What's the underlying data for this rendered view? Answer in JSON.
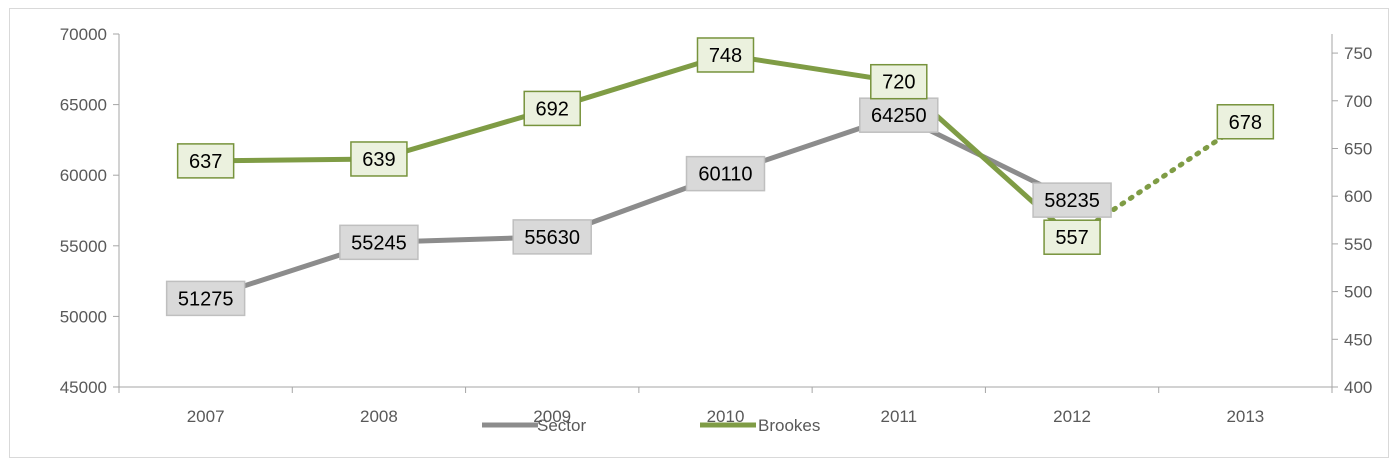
{
  "chart_data": {
    "type": "line",
    "categories": [
      "2007",
      "2008",
      "2009",
      "2010",
      "2011",
      "2012",
      "2013"
    ],
    "series": [
      {
        "name": "Sector",
        "axis": "left",
        "color": "#8c8c8c",
        "label_fill": "#d9d9d9",
        "label_border": "#bfbfbf",
        "values": [
          51275,
          55245,
          55630,
          60110,
          64250,
          58235,
          null
        ],
        "labels": [
          "51275",
          "55245",
          "55630",
          "60110",
          "64250",
          "58235",
          ""
        ]
      },
      {
        "name": "Brookes",
        "axis": "right",
        "color": "#7f9c45",
        "label_fill": "#ebf1de",
        "label_border": "#77933c",
        "values": [
          637,
          639,
          692,
          748,
          720,
          557,
          678
        ],
        "labels": [
          "637",
          "639",
          "692",
          "748",
          "720",
          "557",
          "678"
        ],
        "dotted_from_index": 5
      }
    ],
    "y_left": {
      "min": 45000,
      "max": 70000,
      "ticks": [
        "45000",
        "50000",
        "55000",
        "60000",
        "65000",
        "70000"
      ]
    },
    "y_right": {
      "min": 400,
      "max": 770,
      "ticks": [
        "400",
        "450",
        "500",
        "550",
        "600",
        "650",
        "700",
        "750"
      ]
    },
    "legend_position": "bottom",
    "grid": false
  }
}
